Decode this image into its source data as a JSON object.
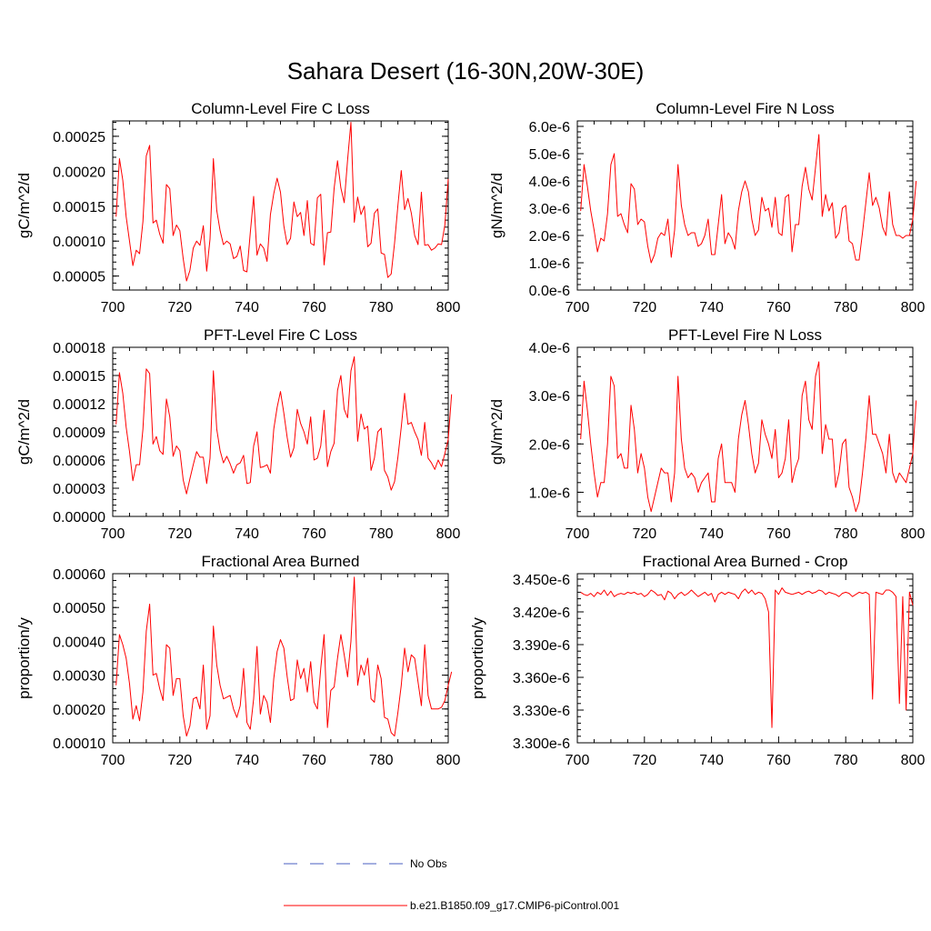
{
  "figure": {
    "title": "Sahara Desert (16-30N,20W-30E)"
  },
  "legend": {
    "entries": [
      {
        "label": "No Obs",
        "color": "#4a5fc0",
        "style": "dashed"
      },
      {
        "label": "b.e21.B1850.f09_g17.CMIP6-piControl.001",
        "color": "#ff0000",
        "style": "solid"
      }
    ]
  },
  "chart_data": [
    {
      "type": "line",
      "title": "Column-Level Fire C Loss",
      "ylabel": "gC/m^2/d",
      "xlabel": "",
      "xlim": [
        700,
        800
      ],
      "ylim": [
        3e-05,
        0.000272
      ],
      "xticks": [
        700,
        720,
        740,
        760,
        780,
        800
      ],
      "xtick_labels": [
        "700",
        "720",
        "740",
        "760",
        "780",
        "800"
      ],
      "yticks": [
        5e-05,
        0.0001,
        0.00015,
        0.0002,
        0.00025
      ],
      "ytick_labels": [
        "0.00005",
        "0.00010",
        "0.00015",
        "0.00020",
        "0.00025"
      ],
      "series": [
        {
          "name": "b.e21.B1850.f09_g17.CMIP6-piControl.001",
          "color": "#ff0000",
          "x_start": 701,
          "values": [
            0.000135,
            0.000218,
            0.000187,
            0.000135,
            0.0001,
            6.5e-05,
            8.7e-05,
            8.2e-05,
            0.000128,
            0.000222,
            0.000237,
            0.000126,
            0.00013,
            0.00011,
            9.7e-05,
            0.000181,
            0.000175,
            0.000108,
            0.000123,
            0.000115,
            7.5e-05,
            4.3e-05,
            5.8e-05,
            9e-05,
            0.0001,
            9.4e-05,
            0.000122,
            5.7e-05,
            0.000103,
            0.000218,
            0.000144,
            0.000115,
            9.5e-05,
            0.0001,
            9.6e-05,
            7.5e-05,
            7.8e-05,
            9.3e-05,
            5.8e-05,
            5.6e-05,
            0.000112,
            0.000164,
            8e-05,
            9.6e-05,
            9e-05,
            7.1e-05,
            0.000138,
            0.000168,
            0.00019,
            0.00017,
            0.000122,
            9.5e-05,
            0.000104,
            0.000156,
            0.000135,
            0.000141,
            0.000108,
            0.000158,
            9.7e-05,
            9.4e-05,
            0.000162,
            0.000167,
            6.6e-05,
            0.000112,
            0.000113,
            0.000176,
            0.000215,
            0.000176,
            0.000155,
            0.000216,
            0.00027,
            0.000127,
            0.000163,
            0.000138,
            0.00015,
            9.2e-05,
            9.7e-05,
            0.00014,
            0.000146,
            8.3e-05,
            8.1e-05,
            4.8e-05,
            5.3e-05,
            9.7e-05,
            0.000151,
            0.000201,
            0.000145,
            0.000161,
            0.00014,
            0.000108,
            9.5e-05,
            0.00017,
            9.4e-05,
            9.5e-05,
            8.7e-05,
            9e-05,
            9.6e-05,
            9.5e-05,
            0.000123,
            0.000189
          ]
        }
      ]
    },
    {
      "type": "line",
      "title": "Column-Level Fire N Loss",
      "ylabel": "gN/m^2/d",
      "xlabel": "",
      "xlim": [
        700,
        800
      ],
      "ylim": [
        0,
        6.2e-06
      ],
      "xticks": [
        700,
        720,
        740,
        760,
        780,
        800
      ],
      "xtick_labels": [
        "700",
        "720",
        "740",
        "760",
        "780",
        "800"
      ],
      "yticks": [
        0,
        1e-06,
        2e-06,
        3e-06,
        4e-06,
        5e-06,
        6e-06
      ],
      "ytick_labels": [
        "0.0e-6",
        "1.0e-6",
        "2.0e-6",
        "3.0e-6",
        "4.0e-6",
        "5.0e-6",
        "6.0e-6"
      ],
      "series": [
        {
          "name": "b.e21.B1850.f09_g17.CMIP6-piControl.001",
          "color": "#ff0000",
          "x_start": 701,
          "values": [
            2.9e-06,
            4.6e-06,
            3.8e-06,
            2.9e-06,
            2.2e-06,
            1.4e-06,
            1.9e-06,
            1.8e-06,
            2.8e-06,
            4.6e-06,
            5e-06,
            2.7e-06,
            2.8e-06,
            2.4e-06,
            2.1e-06,
            3.9e-06,
            3.7e-06,
            2.4e-06,
            2.6e-06,
            2.5e-06,
            1.6e-06,
            1e-06,
            1.3e-06,
            1.9e-06,
            2.1e-06,
            2e-06,
            2.6e-06,
            1.2e-06,
            2.2e-06,
            4.6e-06,
            3.1e-06,
            2.4e-06,
            2e-06,
            2.1e-06,
            2.1e-06,
            1.6e-06,
            1.7e-06,
            2e-06,
            2.6e-06,
            1.3e-06,
            1.3e-06,
            2.4e-06,
            3.5e-06,
            1.7e-06,
            2.1e-06,
            1.9e-06,
            1.5e-06,
            2.9e-06,
            3.6e-06,
            4e-06,
            3.6e-06,
            2.6e-06,
            2e-06,
            2.2e-06,
            3.4e-06,
            2.9e-06,
            3e-06,
            2.3e-06,
            3.4e-06,
            2.1e-06,
            2e-06,
            3.4e-06,
            3.5e-06,
            1.4e-06,
            2.4e-06,
            2.4e-06,
            3.8e-06,
            4.5e-06,
            3.7e-06,
            3.3e-06,
            4.5e-06,
            5.7e-06,
            2.7e-06,
            3.5e-06,
            2.9e-06,
            3.2e-06,
            1.9e-06,
            2.1e-06,
            3e-06,
            3.1e-06,
            1.8e-06,
            1.7e-06,
            1.1e-06,
            1.1e-06,
            2.1e-06,
            3.2e-06,
            4.3e-06,
            3.1e-06,
            3.4e-06,
            3e-06,
            2.3e-06,
            2e-06,
            3.6e-06,
            2.4e-06,
            2e-06,
            2e-06,
            1.9e-06,
            2e-06,
            2e-06,
            2.6e-06,
            4e-06
          ]
        }
      ]
    },
    {
      "type": "line",
      "title": "PFT-Level Fire C Loss",
      "ylabel": "gC/m^2/d",
      "xlabel": "",
      "xlim": [
        700,
        800
      ],
      "ylim": [
        0,
        0.00018
      ],
      "xticks": [
        700,
        720,
        740,
        760,
        780,
        800
      ],
      "xtick_labels": [
        "700",
        "720",
        "740",
        "760",
        "780",
        "800"
      ],
      "yticks": [
        0,
        3e-05,
        6e-05,
        9e-05,
        0.00012,
        0.00015,
        0.00018
      ],
      "ytick_labels": [
        "0.00000",
        "0.00003",
        "0.00006",
        "0.00009",
        "0.00012",
        "0.00015",
        "0.00018"
      ],
      "series": [
        {
          "name": "b.e21.B1850.f09_g17.CMIP6-piControl.001",
          "color": "#ff0000",
          "x_start": 701,
          "values": [
            9.8e-05,
            0.000153,
            0.000131,
            9.5e-05,
            6.9e-05,
            3.8e-05,
            5.5e-05,
            5.5e-05,
            9.3e-05,
            0.000157,
            0.000152,
            7.7e-05,
            8.5e-05,
            7e-05,
            6.6e-05,
            0.000125,
            0.000106,
            6.4e-05,
            7.5e-05,
            7e-05,
            3.9e-05,
            2.4e-05,
            4e-05,
            5.5e-05,
            6.9e-05,
            6.3e-05,
            6.3e-05,
            3.5e-05,
            6.2e-05,
            0.000155,
            9.3e-05,
            7e-05,
            5.7e-05,
            6.4e-05,
            5.6e-05,
            4.6e-05,
            5.5e-05,
            5.7e-05,
            6.5e-05,
            3.5e-05,
            3.6e-05,
            7.5e-05,
            9e-05,
            5.2e-05,
            5.3e-05,
            5.5e-05,
            4.6e-05,
            9.3e-05,
            0.000116,
            0.000133,
            0.00011,
            8.4e-05,
            6.3e-05,
            7.3e-05,
            0.000114,
            9.9e-05,
            9e-05,
            7.7e-05,
            0.000106,
            6e-05,
            6.2e-05,
            7.5e-05,
            0.000113,
            5.3e-05,
            6.9e-05,
            7.8e-05,
            0.000134,
            0.00015,
            0.000114,
            0.000105,
            0.000155,
            0.00017,
            8e-05,
            0.000109,
            9.3e-05,
            9.6e-05,
            4.9e-05,
            6.2e-05,
            9e-05,
            9.4e-05,
            4.9e-05,
            4.2e-05,
            2.8e-05,
            3.7e-05,
            6.3e-05,
            9.5e-05,
            0.000131,
            9.8e-05,
            0.0001,
            9e-05,
            8.2e-05,
            6.5e-05,
            0.0001,
            6.2e-05,
            5.7e-05,
            5e-05,
            6e-05,
            5.3e-05,
            6.7e-05,
            8.2e-05,
            0.00013
          ]
        }
      ]
    },
    {
      "type": "line",
      "title": "PFT-Level Fire N Loss",
      "ylabel": "gN/m^2/d",
      "xlabel": "",
      "xlim": [
        700,
        800
      ],
      "ylim": [
        5e-07,
        4e-06
      ],
      "xticks": [
        700,
        720,
        740,
        760,
        780,
        800
      ],
      "xtick_labels": [
        "700",
        "720",
        "740",
        "760",
        "780",
        "800"
      ],
      "yticks": [
        1e-06,
        2e-06,
        3e-06,
        4e-06
      ],
      "ytick_labels": [
        "1.0e-6",
        "2.0e-6",
        "3.0e-6",
        "4.0e-6"
      ],
      "series": [
        {
          "name": "b.e21.B1850.f09_g17.CMIP6-piControl.001",
          "color": "#ff0000",
          "x_start": 701,
          "values": [
            2.1e-06,
            3.3e-06,
            2.7e-06,
            2e-06,
            1.4e-06,
            9e-07,
            1.2e-06,
            1.2e-06,
            2e-06,
            3.4e-06,
            3.2e-06,
            1.7e-06,
            1.8e-06,
            1.5e-06,
            1.5e-06,
            2.8e-06,
            2.3e-06,
            1.4e-06,
            1.8e-06,
            1.5e-06,
            9e-07,
            6e-07,
            9e-07,
            1.2e-06,
            1.5e-06,
            1.4e-06,
            1.4e-06,
            8e-07,
            1.4e-06,
            3.4e-06,
            2.1e-06,
            1.5e-06,
            1.3e-06,
            1.4e-06,
            1.3e-06,
            1e-06,
            1.2e-06,
            1.3e-06,
            1.4e-06,
            8e-07,
            8e-07,
            1.7e-06,
            2e-06,
            1.2e-06,
            1.2e-06,
            1.2e-06,
            1e-06,
            2.1e-06,
            2.6e-06,
            2.9e-06,
            2.4e-06,
            1.8e-06,
            1.4e-06,
            1.6e-06,
            2.5e-06,
            2.2e-06,
            2e-06,
            1.7e-06,
            2.3e-06,
            1.3e-06,
            1.4e-06,
            1.7e-06,
            2.5e-06,
            1.2e-06,
            1.5e-06,
            1.7e-06,
            3e-06,
            3.3e-06,
            2.5e-06,
            2.3e-06,
            3.4e-06,
            3.7e-06,
            1.8e-06,
            2.4e-06,
            2.1e-06,
            2.1e-06,
            1.1e-06,
            1.4e-06,
            2e-06,
            2.1e-06,
            1.1e-06,
            9e-07,
            6e-07,
            8e-07,
            1.4e-06,
            2.1e-06,
            3e-06,
            2.2e-06,
            2.2e-06,
            2e-06,
            1.8e-06,
            1.4e-06,
            2.2e-06,
            1.4e-06,
            1.2e-06,
            1.4e-06,
            1.3e-06,
            1.2e-06,
            1.5e-06,
            1.8e-06,
            2.9e-06
          ]
        }
      ]
    },
    {
      "type": "line",
      "title": "Fractional Area Burned",
      "ylabel": "proportion/y",
      "xlabel": "",
      "xlim": [
        700,
        800
      ],
      "ylim": [
        0.0001,
        0.0006
      ],
      "xticks": [
        700,
        720,
        740,
        760,
        780,
        800
      ],
      "xtick_labels": [
        "700",
        "720",
        "740",
        "760",
        "780",
        "800"
      ],
      "yticks": [
        0.0001,
        0.0002,
        0.0003,
        0.0004,
        0.0005,
        0.0006
      ],
      "ytick_labels": [
        "0.00010",
        "0.00020",
        "0.00030",
        "0.00040",
        "0.00050",
        "0.00060"
      ],
      "series": [
        {
          "name": "b.e21.B1850.f09_g17.CMIP6-piControl.001",
          "color": "#ff0000",
          "x_start": 701,
          "values": [
            0.00027,
            0.00042,
            0.00039,
            0.00035,
            0.000275,
            0.00017,
            0.00021,
            0.000165,
            0.00025,
            0.00043,
            0.00051,
            0.0003,
            0.000305,
            0.00026,
            0.000225,
            0.00039,
            0.00038,
            0.00024,
            0.00029,
            0.00029,
            0.00018,
            0.00012,
            0.00015,
            0.00023,
            0.000235,
            0.0002,
            0.00033,
            0.00014,
            0.00018,
            0.000445,
            0.00033,
            0.00027,
            0.00023,
            0.000235,
            0.00024,
            0.0002,
            0.000175,
            0.00021,
            0.00032,
            0.00016,
            0.00014,
            0.00023,
            0.000385,
            0.000185,
            0.00024,
            0.00022,
            0.00016,
            0.00029,
            0.00037,
            0.000405,
            0.00038,
            0.000295,
            0.000225,
            0.00023,
            0.000345,
            0.00029,
            0.00032,
            0.00025,
            0.00034,
            0.00022,
            0.0002,
            0.00032,
            0.00042,
            0.000145,
            0.000255,
            0.000265,
            0.00035,
            0.00042,
            0.00036,
            0.000295,
            0.0004,
            0.00059,
            0.00027,
            0.00033,
            0.0003,
            0.00035,
            0.00023,
            0.00022,
            0.00033,
            0.00029,
            0.000175,
            0.00017,
            0.00013,
            0.00012,
            0.00019,
            0.00027,
            0.00038,
            0.00031,
            0.00036,
            0.00035,
            0.00028,
            0.00021,
            0.00039,
            0.00024,
            0.0002,
            0.0002,
            0.0002,
            0.000205,
            0.000225,
            0.00027,
            0.00031
          ]
        }
      ]
    },
    {
      "type": "line",
      "title": "Fractional Area Burned - Crop",
      "ylabel": "proportion/y",
      "xlabel": "",
      "xlim": [
        700,
        800
      ],
      "ylim": [
        3.3e-06,
        3.455e-06
      ],
      "xticks": [
        700,
        720,
        740,
        760,
        780,
        800
      ],
      "xtick_labels": [
        "700",
        "720",
        "740",
        "760",
        "780",
        "800"
      ],
      "yticks": [
        3.3e-06,
        3.33e-06,
        3.36e-06,
        3.39e-06,
        3.42e-06,
        3.45e-06
      ],
      "ytick_labels": [
        "3.300e-6",
        "3.330e-6",
        "3.360e-6",
        "3.390e-6",
        "3.420e-6",
        "3.450e-6"
      ],
      "series": [
        {
          "name": "b.e21.B1850.f09_g17.CMIP6-piControl.001",
          "color": "#ff0000",
          "x_start": 701,
          "values": [
            3.438e-06,
            3.436e-06,
            3.435e-06,
            3.437e-06,
            3.434e-06,
            3.438e-06,
            3.436e-06,
            3.44e-06,
            3.435e-06,
            3.439e-06,
            3.434e-06,
            3.436e-06,
            3.437e-06,
            3.436e-06,
            3.438e-06,
            3.437e-06,
            3.438e-06,
            3.436e-06,
            3.437e-06,
            3.434e-06,
            3.436e-06,
            3.44e-06,
            3.438e-06,
            3.435e-06,
            3.436e-06,
            3.431e-06,
            3.439e-06,
            3.437e-06,
            3.432e-06,
            3.436e-06,
            3.438e-06,
            3.435e-06,
            3.437e-06,
            3.44e-06,
            3.437e-06,
            3.434e-06,
            3.436e-06,
            3.438e-06,
            3.435e-06,
            3.437e-06,
            3.429e-06,
            3.436e-06,
            3.438e-06,
            3.436e-06,
            3.438e-06,
            3.437e-06,
            3.436e-06,
            3.432e-06,
            3.438e-06,
            3.441e-06,
            3.437e-06,
            3.44e-06,
            3.436e-06,
            3.438e-06,
            3.437e-06,
            3.432e-06,
            3.42e-06,
            3.314e-06,
            3.44e-06,
            3.436e-06,
            3.442e-06,
            3.438e-06,
            3.437e-06,
            3.436e-06,
            3.437e-06,
            3.438e-06,
            3.436e-06,
            3.438e-06,
            3.439e-06,
            3.437e-06,
            3.438e-06,
            3.44e-06,
            3.439e-06,
            3.436e-06,
            3.438e-06,
            3.437e-06,
            3.436e-06,
            3.434e-06,
            3.437e-06,
            3.438e-06,
            3.437e-06,
            3.434e-06,
            3.436e-06,
            3.438e-06,
            3.437e-06,
            3.438e-06,
            3.436e-06,
            3.34e-06,
            3.438e-06,
            3.437e-06,
            3.436e-06,
            3.44e-06,
            3.44e-06,
            3.438e-06,
            3.434e-06,
            3.336e-06,
            3.434e-06,
            3.33e-06,
            3.438e-06,
            3.426e-06
          ]
        }
      ]
    }
  ]
}
